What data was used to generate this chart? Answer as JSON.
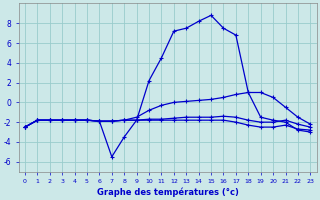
{
  "xlabel": "Graphe des températures (°c)",
  "background_color": "#cce8e8",
  "grid_color": "#99cccc",
  "line_color": "#0000cc",
  "hours": [
    0,
    1,
    2,
    3,
    4,
    5,
    6,
    7,
    8,
    9,
    10,
    11,
    12,
    13,
    14,
    15,
    16,
    17,
    18,
    19,
    20,
    21,
    22,
    23
  ],
  "curve_peak": [
    -2.5,
    -1.8,
    -1.8,
    -1.8,
    -1.8,
    -1.8,
    -1.9,
    -5.5,
    -3.5,
    -1.8,
    2.2,
    4.5,
    7.2,
    7.5,
    8.2,
    8.8,
    7.5,
    6.8,
    1.0,
    -1.5,
    -1.8,
    -2.0,
    -2.8,
    -3.0
  ],
  "curve_upper": [
    -2.5,
    -1.8,
    -1.8,
    -1.8,
    -1.8,
    -1.8,
    -1.9,
    -1.9,
    -1.8,
    -1.5,
    -0.8,
    -0.3,
    0.0,
    0.1,
    0.2,
    0.3,
    0.5,
    0.8,
    1.0,
    1.0,
    0.5,
    -0.5,
    -1.5,
    -2.2
  ],
  "curve_mid": [
    -2.5,
    -1.8,
    -1.8,
    -1.8,
    -1.8,
    -1.8,
    -1.9,
    -1.9,
    -1.8,
    -1.8,
    -1.7,
    -1.7,
    -1.6,
    -1.5,
    -1.5,
    -1.5,
    -1.4,
    -1.5,
    -1.8,
    -2.0,
    -2.0,
    -1.8,
    -2.2,
    -2.5
  ],
  "curve_bot": [
    -2.5,
    -1.8,
    -1.8,
    -1.8,
    -1.8,
    -1.8,
    -1.9,
    -1.9,
    -1.8,
    -1.8,
    -1.8,
    -1.8,
    -1.8,
    -1.8,
    -1.8,
    -1.8,
    -1.8,
    -2.0,
    -2.3,
    -2.5,
    -2.5,
    -2.3,
    -2.7,
    -2.8
  ],
  "ylim": [
    -7,
    10
  ],
  "xlim": [
    -0.5,
    23.5
  ],
  "yticks": [
    -6,
    -4,
    -2,
    0,
    2,
    4,
    6,
    8
  ]
}
